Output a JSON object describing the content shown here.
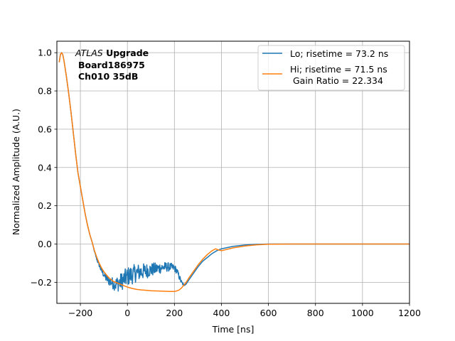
{
  "chart_data": {
    "type": "line",
    "title": "",
    "xlabel": "Time [ns]",
    "ylabel": "Normalized Amplitude (A.U.)",
    "xlim": [
      -300,
      1200
    ],
    "ylim": [
      -0.31,
      1.06
    ],
    "xticks": [
      -200,
      0,
      200,
      400,
      600,
      800,
      1000,
      1200
    ],
    "xtick_labels": [
      "−200",
      "0",
      "200",
      "400",
      "600",
      "800",
      "1000",
      "1200"
    ],
    "yticks": [
      -0.2,
      0.0,
      0.2,
      0.4,
      0.6,
      0.8,
      1.0
    ],
    "ytick_labels": [
      "−0.2",
      "0.0",
      "0.2",
      "0.4",
      "0.6",
      "0.8",
      "1.0"
    ],
    "grid": true,
    "legend_position": "top-right",
    "annotation": {
      "line1_italic": "ATLAS",
      "line1_bold": " Upgrade",
      "line2": "Board186975",
      "line3": "Ch010 35dB"
    },
    "series": [
      {
        "name": "Lo; risetime = 73.2 ns",
        "color": "#1f77b4",
        "noisy_range": [
          -150,
          250
        ],
        "noise_amp": [
          0,
          0.01,
          0.02,
          0.03,
          0.045,
          0.05,
          0.05,
          0.045,
          0.04,
          0.035,
          0.03,
          0.025,
          0.02,
          0.015,
          0.0
        ],
        "x": [
          -290,
          -285,
          -280,
          -275,
          -270,
          -260,
          -250,
          -240,
          -230,
          -220,
          -210,
          -200,
          -190,
          -180,
          -170,
          -160,
          -150,
          -140,
          -130,
          -120,
          -110,
          -100,
          -90,
          -80,
          -70,
          -60,
          -50,
          -40,
          -30,
          -20,
          -10,
          0,
          20,
          40,
          60,
          80,
          100,
          120,
          140,
          160,
          180,
          200,
          210,
          220,
          230,
          240,
          250,
          260,
          280,
          300,
          320,
          340,
          360,
          380,
          400,
          450,
          500,
          550,
          600,
          700,
          800,
          900,
          1000,
          1100,
          1200
        ],
        "y": [
          0.95,
          0.99,
          1.0,
          0.99,
          0.96,
          0.88,
          0.79,
          0.69,
          0.58,
          0.47,
          0.37,
          0.3,
          0.23,
          0.16,
          0.1,
          0.05,
          0.01,
          -0.04,
          -0.08,
          -0.11,
          -0.14,
          -0.16,
          -0.18,
          -0.19,
          -0.2,
          -0.205,
          -0.21,
          -0.205,
          -0.2,
          -0.19,
          -0.18,
          -0.17,
          -0.16,
          -0.15,
          -0.145,
          -0.14,
          -0.135,
          -0.13,
          -0.125,
          -0.12,
          -0.12,
          -0.125,
          -0.14,
          -0.17,
          -0.2,
          -0.215,
          -0.21,
          -0.19,
          -0.155,
          -0.12,
          -0.09,
          -0.07,
          -0.05,
          -0.035,
          -0.025,
          -0.012,
          -0.005,
          -0.002,
          0.0,
          0.0,
          0.0,
          0.0,
          0.0,
          0.0,
          0.0
        ]
      },
      {
        "name": "Hi; risetime = 71.5 ns\n Gain Ratio = 22.334",
        "color": "#ff7f0e",
        "x": [
          -290,
          -285,
          -280,
          -275,
          -270,
          -260,
          -250,
          -240,
          -230,
          -220,
          -210,
          -200,
          -190,
          -180,
          -170,
          -160,
          -150,
          -140,
          -130,
          -120,
          -110,
          -100,
          -90,
          -80,
          -70,
          -60,
          -50,
          -40,
          -20,
          0,
          20,
          40,
          60,
          80,
          100,
          120,
          140,
          160,
          180,
          200,
          210,
          220,
          230,
          240,
          250,
          260,
          280,
          300,
          320,
          340,
          360,
          375,
          385,
          400,
          450,
          500,
          550,
          600,
          700,
          800,
          900,
          1000,
          1100,
          1200
        ],
        "y": [
          0.95,
          0.99,
          1.0,
          0.99,
          0.96,
          0.88,
          0.79,
          0.69,
          0.58,
          0.47,
          0.37,
          0.3,
          0.23,
          0.16,
          0.1,
          0.05,
          0.01,
          -0.035,
          -0.07,
          -0.1,
          -0.125,
          -0.145,
          -0.16,
          -0.175,
          -0.185,
          -0.195,
          -0.2,
          -0.205,
          -0.215,
          -0.225,
          -0.232,
          -0.237,
          -0.24,
          -0.242,
          -0.244,
          -0.245,
          -0.246,
          -0.247,
          -0.248,
          -0.248,
          -0.245,
          -0.24,
          -0.23,
          -0.215,
          -0.2,
          -0.18,
          -0.145,
          -0.11,
          -0.08,
          -0.055,
          -0.035,
          -0.025,
          -0.03,
          -0.035,
          -0.02,
          -0.01,
          -0.004,
          -0.001,
          0.0,
          0.0,
          0.0,
          0.0,
          0.0,
          0.0
        ]
      }
    ]
  }
}
